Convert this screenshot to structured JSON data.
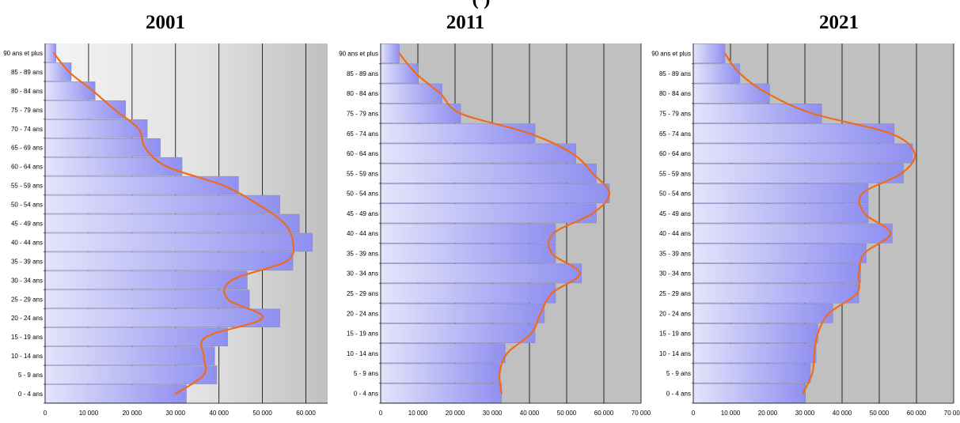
{
  "header": {
    "partial_title": "(        )"
  },
  "colors": {
    "bar_left": "#e4e4fb",
    "bar_right": "#8f8ff0",
    "bar_edge": "#8a8ac8",
    "curve": "#f06a1c",
    "plot_bg": "#c0c0c0",
    "plot_bg_light": "#f4f4f4",
    "gridline": "#000000"
  },
  "chart_data": [
    {
      "type": "bar",
      "orientation": "horizontal",
      "title": "2001",
      "categories": [
        "0 - 4 ans",
        "5 - 9 ans",
        "10 - 14 ans",
        "15 - 19 ans",
        "20 - 24 ans",
        "25 - 29 ans",
        "30 - 34 ans",
        "35 - 39 ans",
        "40 - 44 ans",
        "45 - 49 ans",
        "50 - 54 ans",
        "55 - 59 ans",
        "60 - 64 ans",
        "65 - 69 ans",
        "70 - 74 ans",
        "75 - 79 ans",
        "80 - 84 ans",
        "85 - 89 ans",
        "90 ans et plus"
      ],
      "values": [
        32500,
        39500,
        39000,
        42000,
        54000,
        47000,
        46500,
        57000,
        61500,
        58500,
        54000,
        44500,
        31500,
        26500,
        23500,
        18500,
        11500,
        6000,
        2500
      ],
      "curve": [
        30000,
        36500,
        36500,
        37000,
        50000,
        42000,
        43000,
        55500,
        57000,
        55000,
        49000,
        41000,
        28000,
        23000,
        21500,
        16000,
        11000,
        5500,
        2000
      ],
      "xticks": [
        0,
        10000,
        20000,
        30000,
        40000,
        50000,
        60000
      ],
      "xtick_labels": [
        "0",
        "10 000",
        "20 000",
        "30 000",
        "40 000",
        "50 000",
        "60 000"
      ],
      "xlim": [
        0,
        65000
      ],
      "grid": true,
      "background": "gradient"
    },
    {
      "type": "bar",
      "orientation": "horizontal",
      "title": "2011",
      "categories": [
        "0 - 4 ans",
        "5 - 9 ans",
        "10 - 14 ans",
        "15 - 19 ans",
        "20 - 24 ans",
        "25 - 29 ans",
        "30 - 34 ans",
        "35 - 39 ans",
        "40 - 44 ans",
        "45 - 49 ans",
        "50 - 54 ans",
        "55 - 59 ans",
        "60 - 64 ans",
        "65 - 74 ans",
        "75 - 79 ans",
        "80 - 84 ans",
        "85 - 89 ans",
        "90 ans et plus"
      ],
      "values": [
        32500,
        32000,
        33500,
        41500,
        44000,
        47000,
        54000,
        47000,
        47000,
        58000,
        61500,
        58000,
        52500,
        41500,
        21500,
        16500,
        10000,
        5000
      ],
      "curve": [
        32500,
        32000,
        34000,
        40500,
        43000,
        46000,
        53500,
        46000,
        46500,
        57000,
        61500,
        57000,
        51500,
        40000,
        21500,
        16000,
        9500,
        5000
      ],
      "xticks": [
        0,
        10000,
        20000,
        30000,
        40000,
        50000,
        60000,
        70000
      ],
      "xtick_labels": [
        "0",
        "10 000",
        "20 000",
        "30 000",
        "40 000",
        "50 000",
        "60 000",
        "70 000"
      ],
      "xlim": [
        0,
        70000
      ],
      "grid": true,
      "background": "flat"
    },
    {
      "type": "bar",
      "orientation": "horizontal",
      "title": "2021",
      "categories": [
        "0 - 4 ans",
        "5 - 9 ans",
        "10 - 14 ans",
        "15 - 19 ans",
        "20 - 24 ans",
        "25 - 29 ans",
        "30 - 34 ans",
        "35 - 39 ans",
        "40 - 44 ans",
        "45 - 49 ans",
        "50 - 54 ans",
        "55 - 59 ans",
        "60 - 64 ans",
        "65 - 74 ans",
        "75 - 79 ans",
        "80 - 84 ans",
        "85 - 89 ans",
        "90 ans et plus"
      ],
      "values": [
        30000,
        31500,
        33000,
        33500,
        37500,
        44500,
        45000,
        46500,
        53500,
        47000,
        47000,
        56500,
        59000,
        54000,
        34500,
        20500,
        12500,
        8500
      ],
      "curve": [
        29500,
        32000,
        32500,
        33500,
        36500,
        44000,
        44500,
        46000,
        53000,
        46000,
        45500,
        56000,
        59500,
        53000,
        32000,
        20000,
        12500,
        8500
      ],
      "xticks": [
        0,
        10000,
        20000,
        30000,
        40000,
        50000,
        60000,
        70000
      ],
      "xtick_labels": [
        "0",
        "10 000",
        "20 000",
        "30 000",
        "40 000",
        "50 000",
        "60 000",
        "70 000"
      ],
      "xlim": [
        0,
        70000
      ],
      "grid": true,
      "background": "flat"
    }
  ]
}
